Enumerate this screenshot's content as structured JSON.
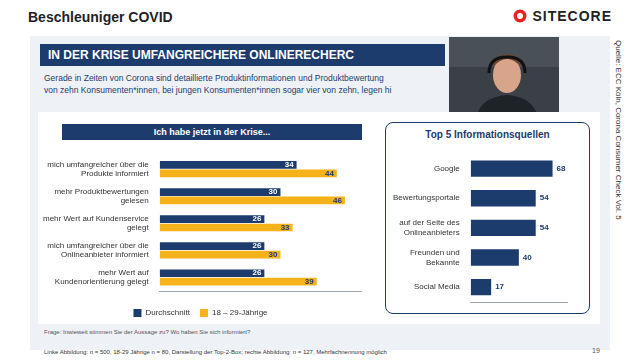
{
  "page": {
    "header": "Beschleuniger COVID",
    "logo": "SITECORE",
    "slide_title": "IN DER KRISE UMFANGREICHERE ONLINERECHERC",
    "subtitle": [
      "Gerade in Zeiten von Corona sind detaillierte Produktinformationen und Produktbewertung",
      "von zehn Konsumenten*innen, bei jungen Konsumenten*innen sogar vier von zehn, legen hi"
    ],
    "question": "Frage: Inwieweit stimmen Sie der Aussage zu? Wo haben Sie sich informiert?",
    "footnote": "Linke Abbildung: n = 500, 18-29 Jährige n = 80, Darstellung der Top-2-Box; rechte Abbildung: n = 127, Mehrfachnennung möglich",
    "page_number": 19,
    "source": "Quelle: ECC Köln, Corona Consumer Check Vol. 5"
  },
  "chart_data": [
    {
      "type": "bar",
      "orientation": "horizontal",
      "title": "Ich habe jetzt in der Krise...",
      "categories": [
        "mich umfangreicher über die Produkte informiert",
        "mehr Produktbewertungen gelesen",
        "mehr Wert auf Kundenservice gelegt",
        "mich umfangreicher über die Onlineanbieter informiert",
        "mehr Wert auf Kundenorientierung gelegt"
      ],
      "series": [
        {
          "name": "Durchschnitt",
          "color": "#1d3c6e",
          "values": [
            34,
            30,
            26,
            26,
            26
          ]
        },
        {
          "name": "18 – 29-Jährige",
          "color": "#f5b21b",
          "values": [
            44,
            46,
            33,
            30,
            39
          ]
        }
      ],
      "xlim": [
        0,
        50
      ],
      "grid": false,
      "tick_labels": "y",
      "data_labels": true,
      "legend": "bottom"
    },
    {
      "type": "bar",
      "orientation": "horizontal",
      "title": "Top 5 Informationsquellen",
      "categories": [
        "Google",
        "Bewertungsportale",
        "auf der Seite des Onlineanbieters",
        "Freunden und Bekannte",
        "Social Media"
      ],
      "values": [
        68,
        54,
        54,
        40,
        17
      ],
      "color": "#1d3c6e",
      "xlim": [
        0,
        80
      ],
      "grid": false,
      "tick_labels": "y",
      "data_labels": true
    }
  ]
}
